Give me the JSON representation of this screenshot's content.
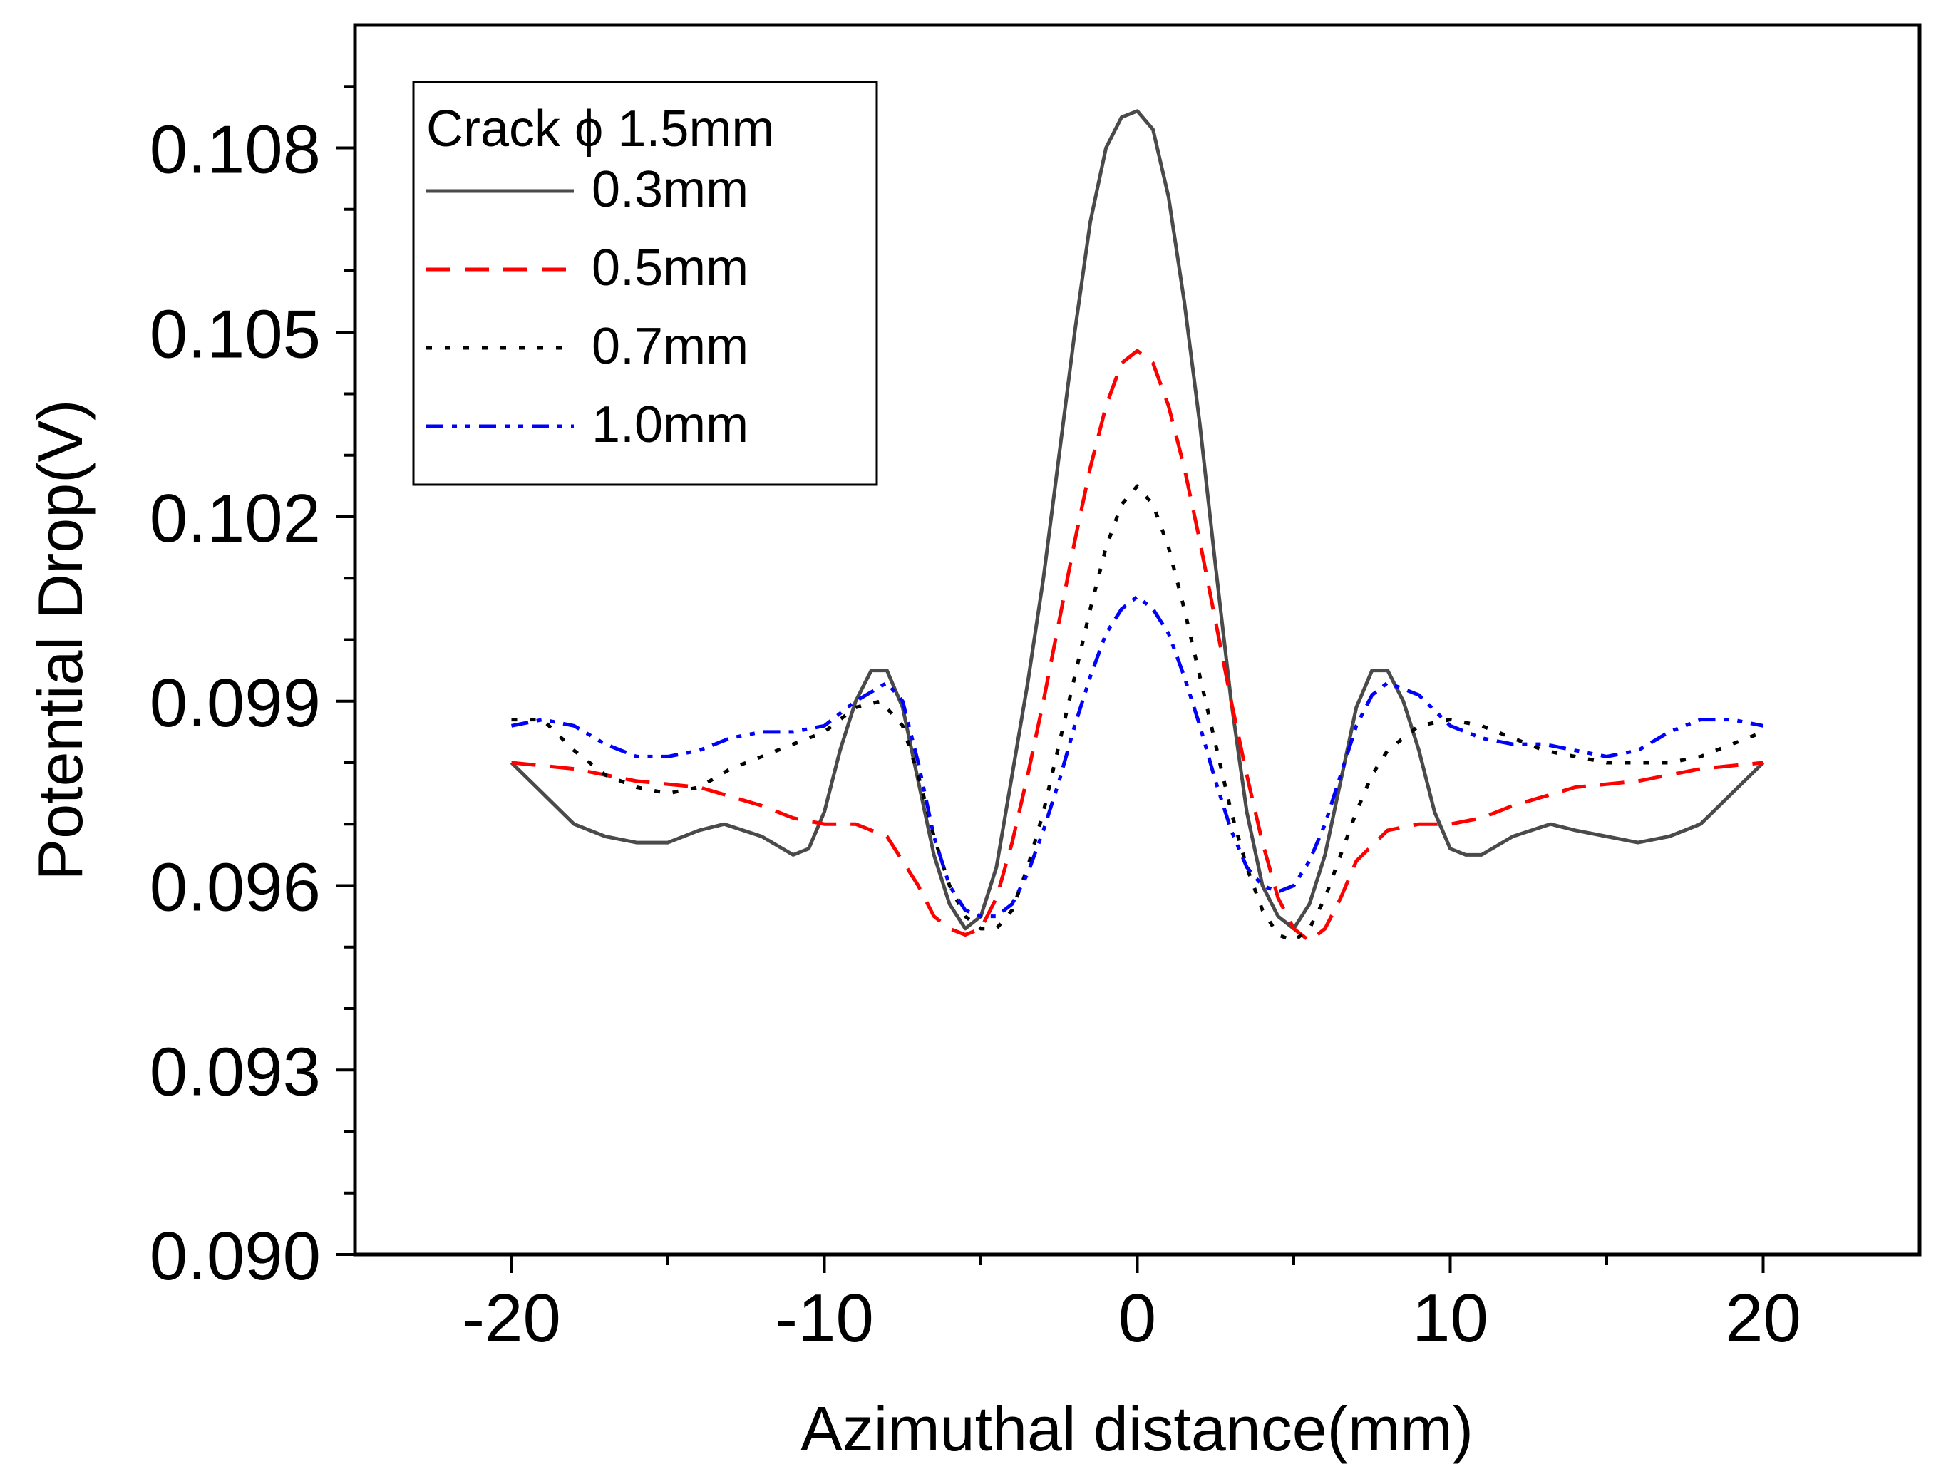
{
  "chart_data": {
    "type": "line",
    "title": "",
    "xlabel": "Azimuthal distance(mm)",
    "ylabel": "Potential Drop(V)",
    "xlim": [
      -25,
      25
    ],
    "ylim": [
      0.09,
      0.11
    ],
    "xticks": [
      -20,
      -10,
      0,
      10,
      20
    ],
    "xtick_labels": [
      "-20",
      "-10",
      "0",
      "10",
      "20"
    ],
    "yticks": [
      0.09,
      0.093,
      0.096,
      0.099,
      0.102,
      0.105,
      0.108
    ],
    "ytick_labels": [
      "0.090",
      "0.093",
      "0.096",
      "0.099",
      "0.102",
      "0.105",
      "0.108"
    ],
    "grid": false,
    "legend": {
      "title": "Crack ϕ 1.5mm",
      "position": "top-left"
    },
    "series": [
      {
        "name": "0.3mm",
        "color": "#4a4a4a",
        "style": "solid",
        "x": [
          -20,
          -18,
          -17,
          -16,
          -15,
          -14,
          -13.2,
          -12,
          -11,
          -10.5,
          -10,
          -9.5,
          -9,
          -8.5,
          -8,
          -7.5,
          -7,
          -6.5,
          -6,
          -5.5,
          -5,
          -4.5,
          -4,
          -3.5,
          -3,
          -2.5,
          -2,
          -1.5,
          -1,
          -0.5,
          0,
          0.5,
          1,
          1.5,
          2,
          2.5,
          3,
          3.5,
          4,
          4.5,
          5,
          5.5,
          6,
          6.5,
          7,
          7.5,
          8,
          8.5,
          9,
          9.5,
          10,
          10.5,
          11,
          12,
          13.2,
          14,
          15,
          16,
          17,
          18,
          20
        ],
        "y": [
          0.098,
          0.097,
          0.0968,
          0.0967,
          0.0967,
          0.0969,
          0.097,
          0.0968,
          0.0965,
          0.0966,
          0.0972,
          0.0982,
          0.099,
          0.0995,
          0.0995,
          0.0989,
          0.0977,
          0.0965,
          0.0957,
          0.0953,
          0.0955,
          0.0963,
          0.0978,
          0.0993,
          0.101,
          0.103,
          0.105,
          0.1068,
          0.108,
          0.1085,
          0.1086,
          0.1083,
          0.1072,
          0.1055,
          0.1035,
          0.1012,
          0.099,
          0.0972,
          0.096,
          0.0955,
          0.0953,
          0.0957,
          0.0965,
          0.0977,
          0.0989,
          0.0995,
          0.0995,
          0.099,
          0.0982,
          0.0972,
          0.0966,
          0.0965,
          0.0965,
          0.0968,
          0.097,
          0.0969,
          0.0968,
          0.0967,
          0.0968,
          0.097,
          0.098
        ]
      },
      {
        "name": "0.5mm",
        "color": "#ff0000",
        "style": "dashed",
        "x": [
          -20,
          -18,
          -16,
          -14,
          -12,
          -11,
          -10,
          -9,
          -8,
          -7,
          -6.5,
          -6,
          -5.5,
          -5,
          -4.5,
          -4,
          -3.5,
          -3,
          -2.5,
          -2,
          -1.5,
          -1,
          -0.5,
          0,
          0.5,
          1,
          1.5,
          2,
          2.5,
          3,
          3.5,
          4,
          4.5,
          5,
          5.5,
          6,
          6.5,
          7,
          8,
          9,
          10,
          11,
          12,
          14,
          16,
          18,
          20
        ],
        "y": [
          0.098,
          0.0979,
          0.0977,
          0.0976,
          0.0973,
          0.0971,
          0.097,
          0.097,
          0.0968,
          0.096,
          0.0955,
          0.0953,
          0.0952,
          0.0953,
          0.0958,
          0.0967,
          0.0978,
          0.099,
          0.1003,
          0.1016,
          0.1028,
          0.1038,
          0.1045,
          0.1047,
          0.1045,
          0.1038,
          0.1028,
          0.1016,
          0.1003,
          0.099,
          0.0978,
          0.0967,
          0.0958,
          0.0953,
          0.0951,
          0.0953,
          0.0958,
          0.0964,
          0.0969,
          0.097,
          0.097,
          0.0971,
          0.0973,
          0.0976,
          0.0977,
          0.0979,
          0.098
        ]
      },
      {
        "name": "0.7mm",
        "color": "#000000",
        "style": "dotted",
        "x": [
          -20,
          -19,
          -18,
          -17,
          -16,
          -15,
          -14,
          -13,
          -12,
          -11,
          -10,
          -9,
          -8.2,
          -7.5,
          -7,
          -6.5,
          -6,
          -5.5,
          -5,
          -4.5,
          -4,
          -3.5,
          -3,
          -2.5,
          -2,
          -1.5,
          -1,
          -0.5,
          0,
          0.5,
          1,
          1.5,
          2,
          2.5,
          3,
          3.5,
          4,
          4.5,
          5,
          5.5,
          6,
          6.5,
          7,
          7.5,
          8,
          9,
          10,
          11,
          12,
          13,
          14,
          15,
          16,
          17,
          18,
          19,
          20
        ],
        "y": [
          0.0987,
          0.0987,
          0.0982,
          0.0978,
          0.0976,
          0.0975,
          0.0976,
          0.0979,
          0.0981,
          0.0983,
          0.0985,
          0.0989,
          0.099,
          0.0986,
          0.0978,
          0.0968,
          0.096,
          0.0955,
          0.0953,
          0.0953,
          0.0956,
          0.0963,
          0.0972,
          0.0983,
          0.0994,
          0.1005,
          0.1015,
          0.1022,
          0.1025,
          0.1022,
          0.1015,
          0.1005,
          0.0994,
          0.0983,
          0.0972,
          0.0963,
          0.0956,
          0.0952,
          0.0951,
          0.0953,
          0.0958,
          0.0965,
          0.0972,
          0.0978,
          0.0982,
          0.0986,
          0.0987,
          0.0986,
          0.0984,
          0.0982,
          0.0981,
          0.098,
          0.098,
          0.098,
          0.0981,
          0.0983,
          0.0985
        ]
      },
      {
        "name": "1.0mm",
        "color": "#0000ff",
        "style": "dash-dot-dot",
        "x": [
          -20,
          -19,
          -18,
          -17,
          -16,
          -15,
          -14,
          -13,
          -12,
          -11,
          -10,
          -9,
          -8,
          -7.5,
          -7,
          -6.5,
          -6,
          -5.5,
          -5,
          -4.5,
          -4,
          -3.5,
          -3,
          -2.5,
          -2,
          -1.5,
          -1,
          -0.5,
          0,
          0.5,
          1,
          1.5,
          2,
          2.5,
          3,
          3.5,
          4,
          4.5,
          5,
          5.5,
          6,
          6.5,
          7,
          7.5,
          8,
          9,
          10,
          11,
          12,
          13,
          14,
          15,
          16,
          17,
          18,
          19,
          20
        ],
        "y": [
          0.0986,
          0.0987,
          0.0986,
          0.0983,
          0.0981,
          0.0981,
          0.0982,
          0.0984,
          0.0985,
          0.0985,
          0.0986,
          0.099,
          0.0993,
          0.099,
          0.098,
          0.0968,
          0.096,
          0.0956,
          0.0955,
          0.0955,
          0.0957,
          0.0962,
          0.0969,
          0.0977,
          0.0986,
          0.0994,
          0.1001,
          0.1005,
          0.1007,
          0.1005,
          0.1001,
          0.0994,
          0.0986,
          0.0977,
          0.0969,
          0.0963,
          0.096,
          0.0959,
          0.096,
          0.0964,
          0.097,
          0.0978,
          0.0986,
          0.0991,
          0.0993,
          0.0991,
          0.0986,
          0.0984,
          0.0983,
          0.0983,
          0.0982,
          0.0981,
          0.0982,
          0.0985,
          0.0987,
          0.0987,
          0.0986
        ]
      }
    ]
  }
}
